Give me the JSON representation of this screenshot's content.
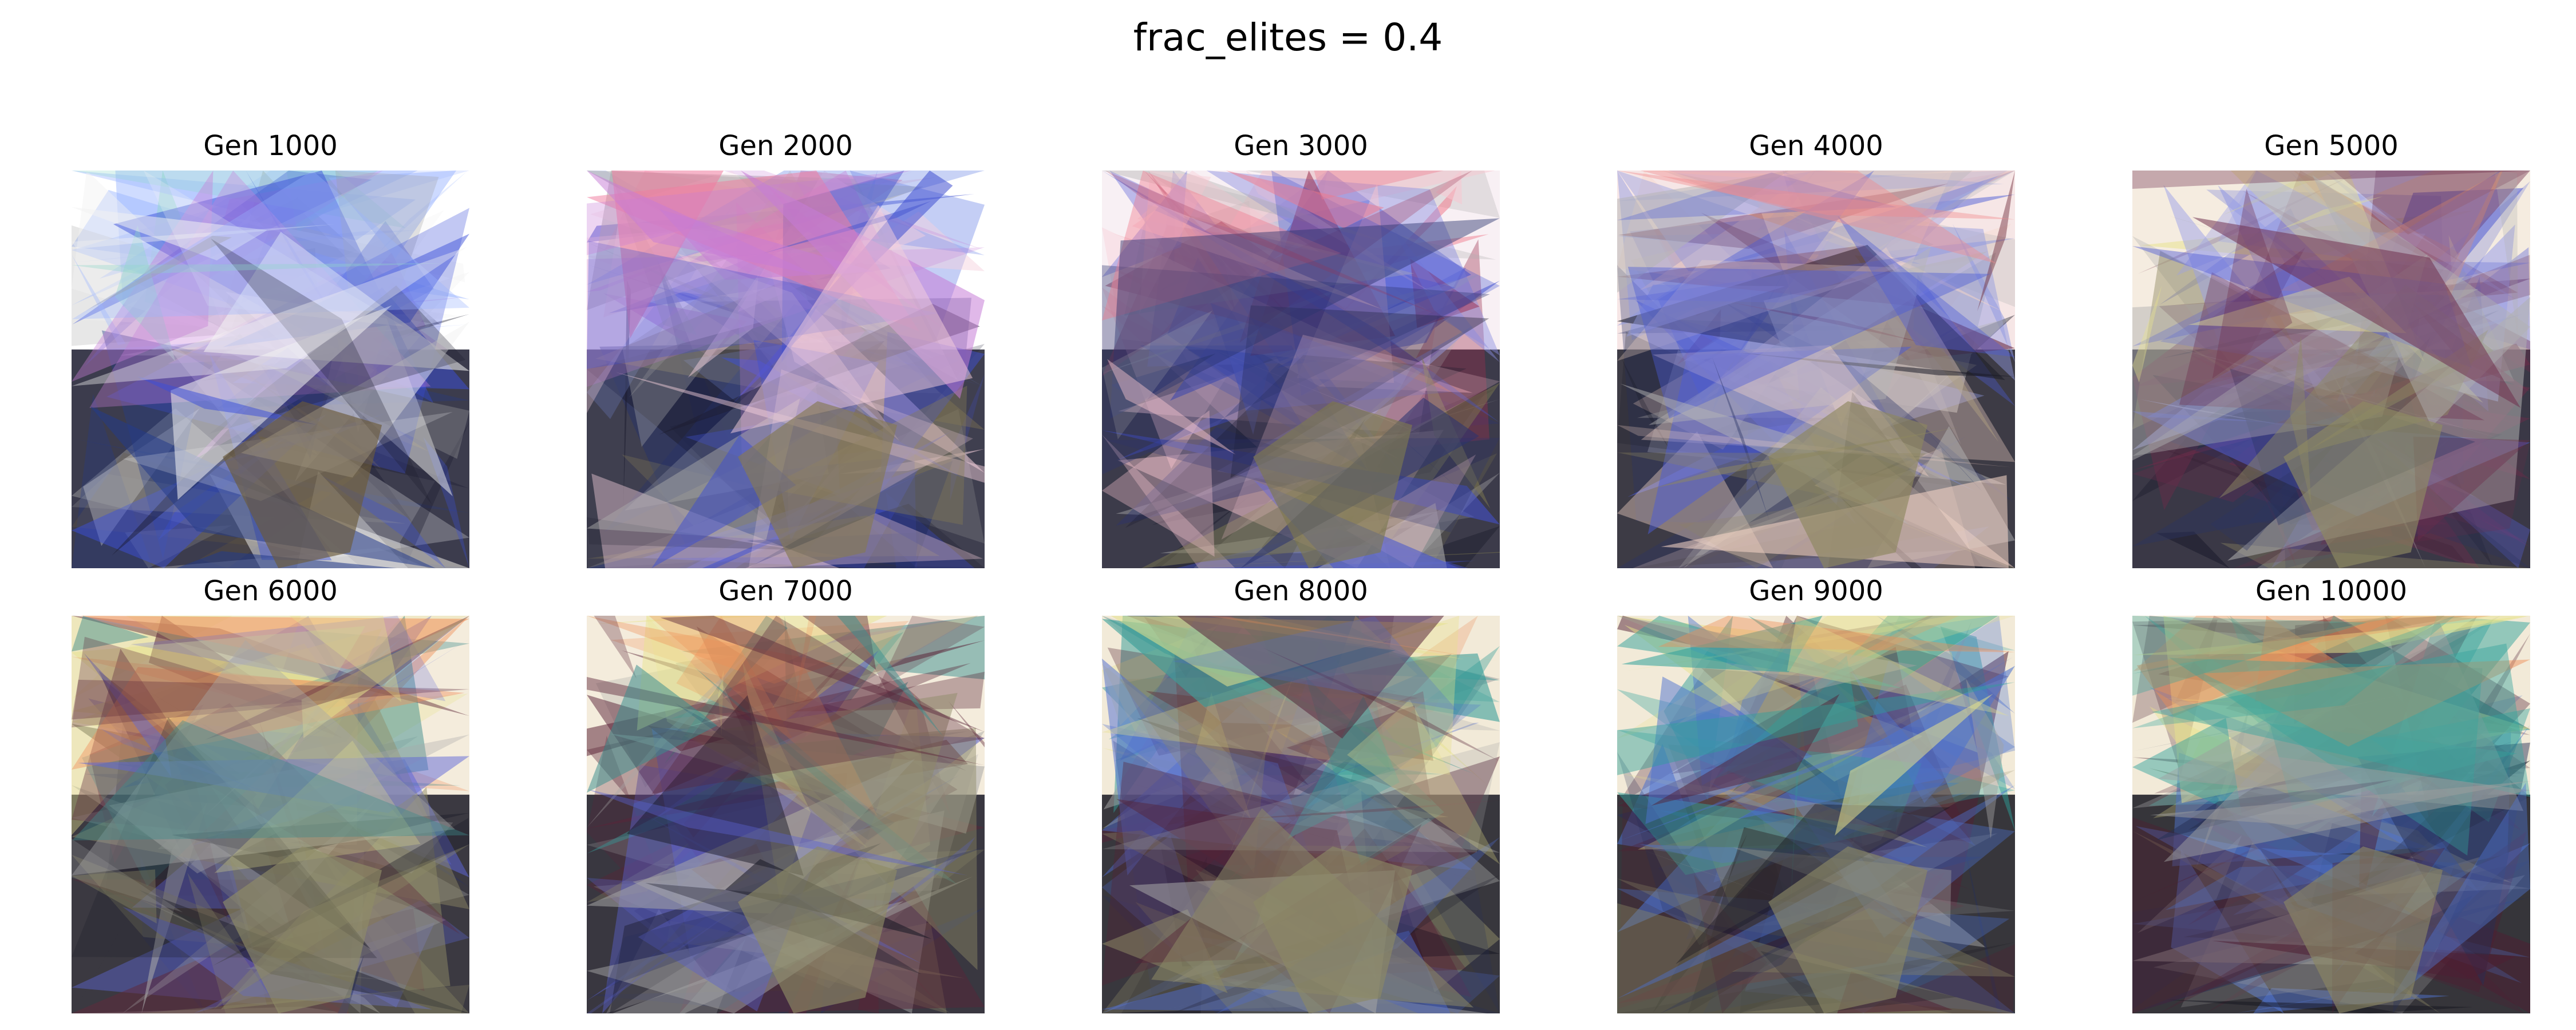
{
  "figure": {
    "title": "frac_elites = 0.4",
    "panels": [
      {
        "title": "Gen 1000",
        "bg": "#ffffff",
        "palette": [
          "#1a1a2e",
          "#3b4fd8",
          "#8fd8c8",
          "#c77dd8",
          "#a0a0a0",
          "#243b8a",
          "#f2f2f2",
          "#6b5b3a",
          "#9ab4ff"
        ]
      },
      {
        "title": "Gen 2000",
        "bg": "#ffffff",
        "palette": [
          "#1d1d30",
          "#3f4fcf",
          "#f07da0",
          "#c67bd6",
          "#a9a9a9",
          "#23306e",
          "#f5d0dc",
          "#857a55",
          "#7d93e8"
        ]
      },
      {
        "title": "Gen 3000",
        "bg": "#f8f0f4",
        "palette": [
          "#1b1b2c",
          "#4251d0",
          "#f07a8c",
          "#9b3050",
          "#b1b1b1",
          "#2b3470",
          "#f8c6cf",
          "#7d7850",
          "#8a8ce0"
        ]
      },
      {
        "title": "Gen 4000",
        "bg": "#f6e6e6",
        "palette": [
          "#1c1c28",
          "#4b5bd6",
          "#f08a8c",
          "#6d2838",
          "#b5b5b5",
          "#2b3566",
          "#f6d6c8",
          "#8e8760",
          "#9099e0"
        ]
      },
      {
        "title": "Gen 5000",
        "bg": "#f5ece0",
        "palette": [
          "#19192a",
          "#5560d6",
          "#f0905c",
          "#e9e48f",
          "#b0b0b0",
          "#2a3462",
          "#6d2c4a",
          "#8f8a63",
          "#9aa0e8"
        ]
      },
      {
        "title": "Gen 6000",
        "bg": "#f4ecdc",
        "palette": [
          "#1a1a26",
          "#5d66d8",
          "#f08f5a",
          "#e6e28c",
          "#a8a8a8",
          "#2a3362",
          "#5f2a3c",
          "#8f8c67",
          "#3c8a8a"
        ]
      },
      {
        "title": "Gen 7000",
        "bg": "#f4ecdc",
        "palette": [
          "#181824",
          "#5a62d0",
          "#ef8f58",
          "#e8e38c",
          "#a6a6a6",
          "#29325c",
          "#5a2438",
          "#8e8a66",
          "#3a8e8e"
        ]
      },
      {
        "title": "Gen 8000",
        "bg": "#f2ead8",
        "palette": [
          "#171722",
          "#4f6cd2",
          "#ee8d57",
          "#e6e18b",
          "#a3a3a3",
          "#283159",
          "#552236",
          "#8c8866",
          "#2f9a96"
        ]
      },
      {
        "title": "Gen 9000",
        "bg": "#f2ead8",
        "palette": [
          "#161620",
          "#4d72cf",
          "#ee8c56",
          "#e7e28c",
          "#a1a1a1",
          "#273057",
          "#512034",
          "#8b8765",
          "#2fa09a"
        ]
      },
      {
        "title": "Gen 10000",
        "bg": "#f2ead8",
        "palette": [
          "#15151f",
          "#4f74d0",
          "#ee8b55",
          "#e8e38d",
          "#a0a0a0",
          "#262f55",
          "#4e1f33",
          "#8a8664",
          "#34a39c"
        ]
      }
    ]
  }
}
